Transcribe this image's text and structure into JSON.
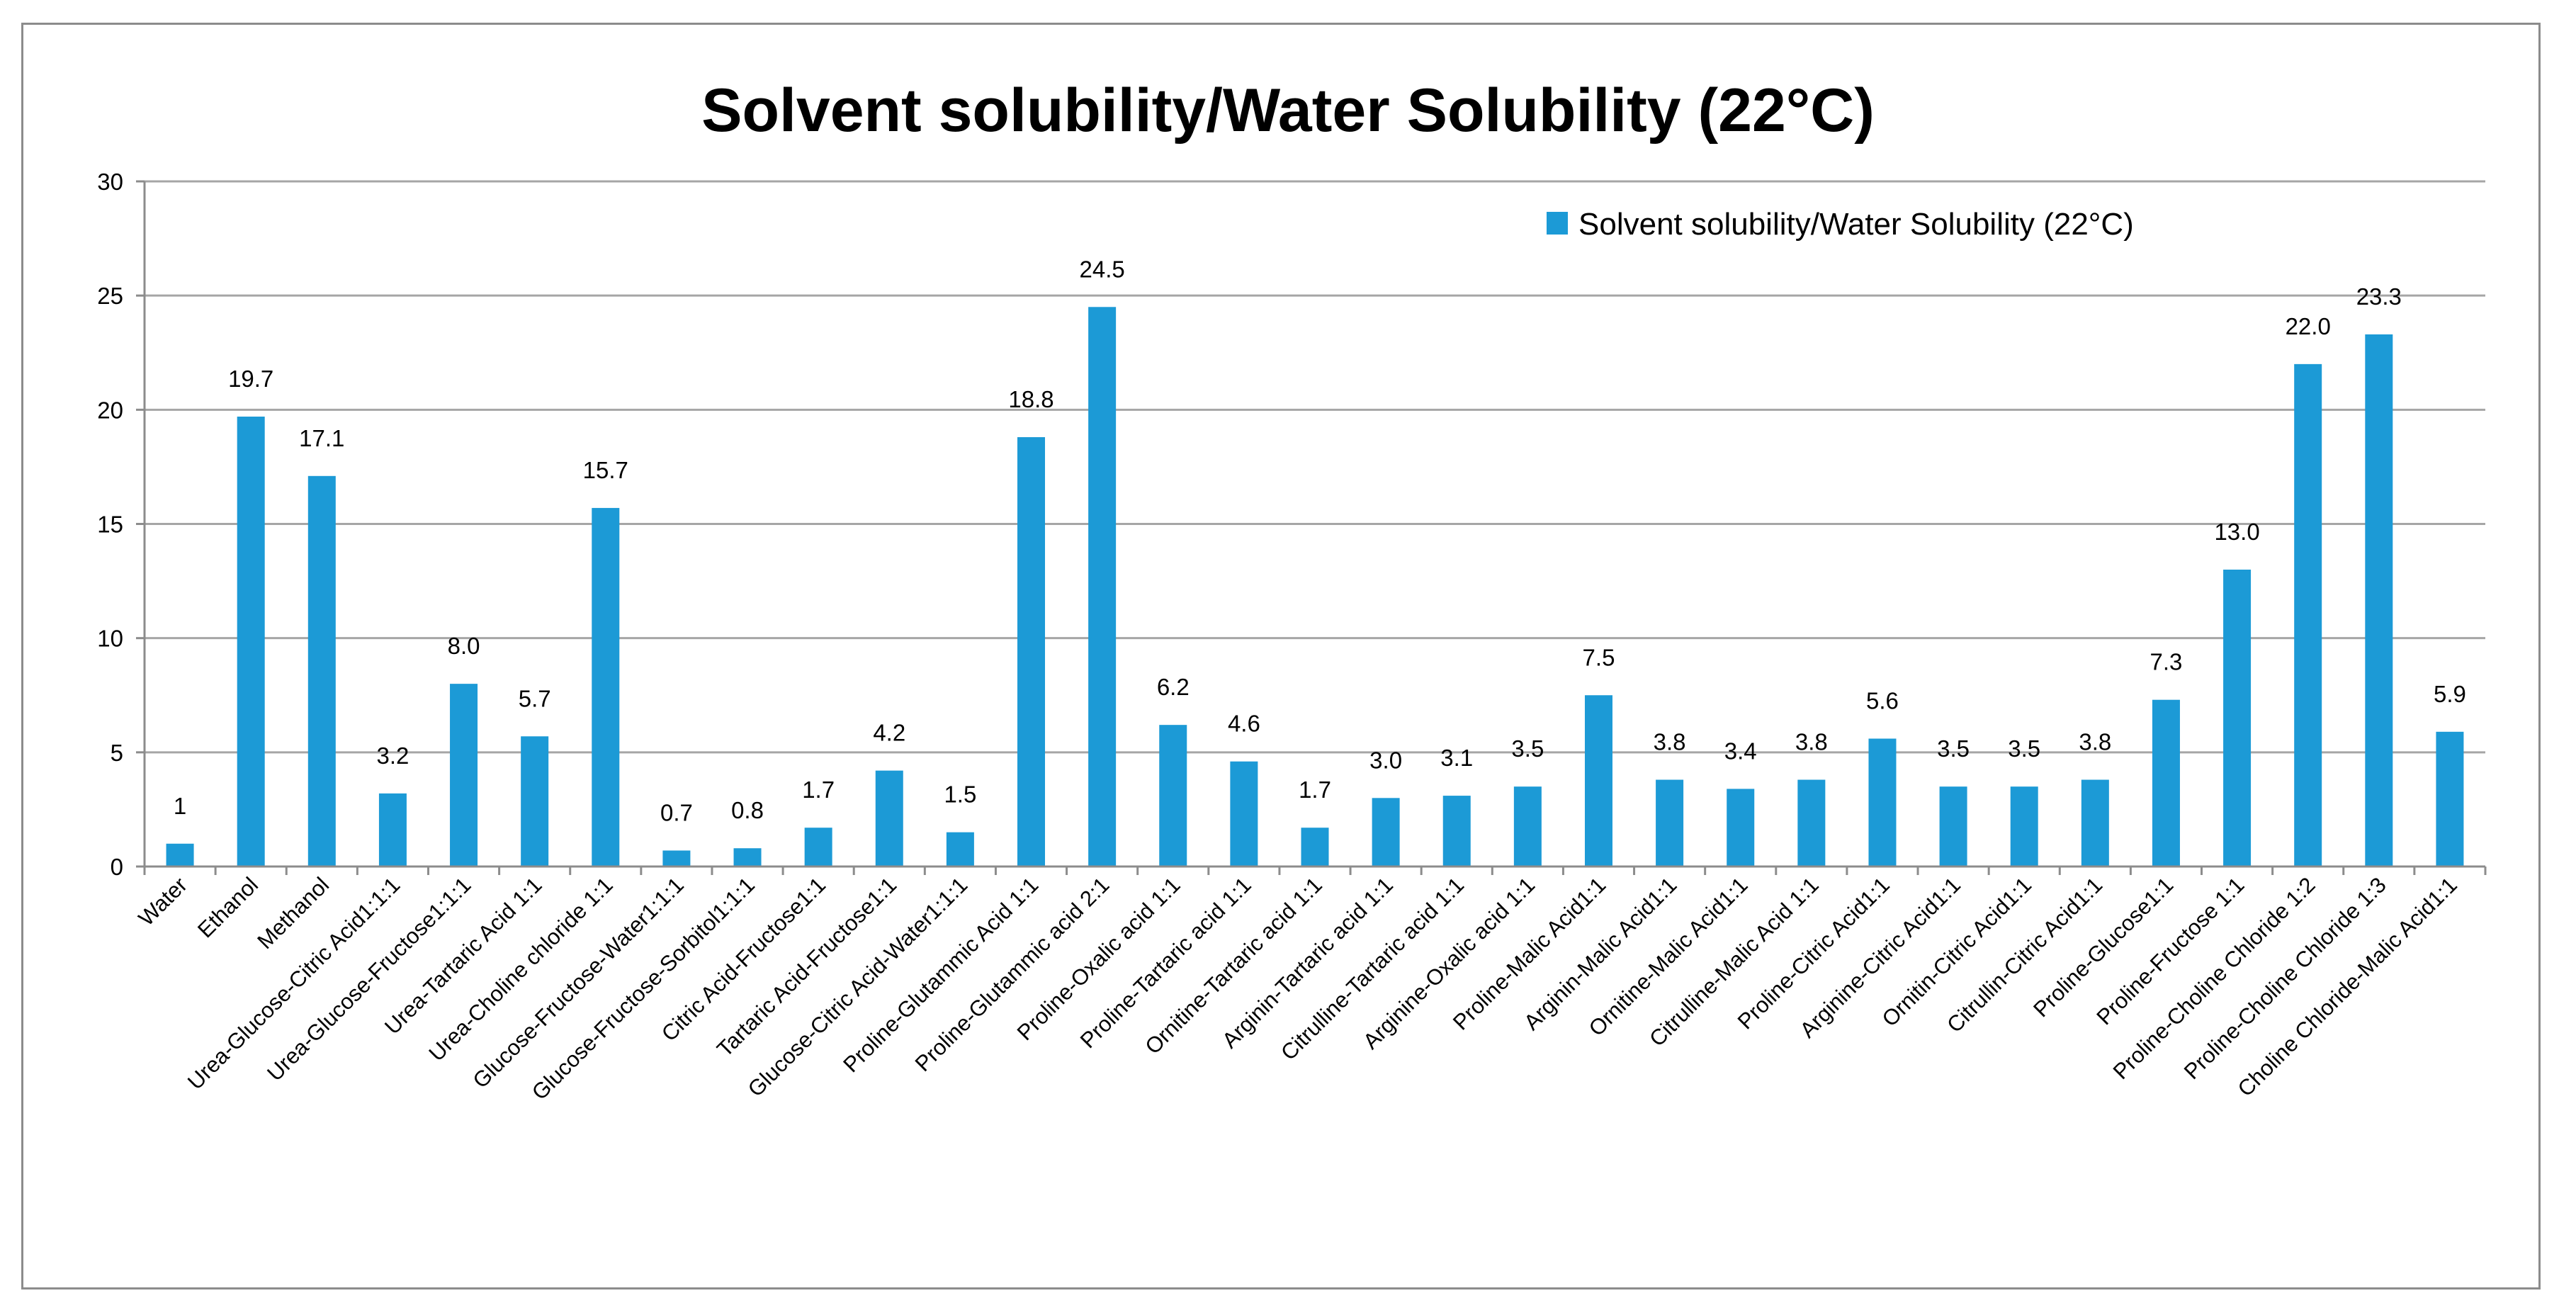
{
  "chart_data": {
    "type": "bar",
    "title": "Solvent solubility/Water Solubility (22°C)",
    "xlabel": "",
    "ylabel": "",
    "ylim": [
      0,
      30
    ],
    "yticks": [
      0,
      5,
      10,
      15,
      20,
      25,
      30
    ],
    "grid": true,
    "legend_position": "top-right",
    "series_color": "#1C9AD6",
    "series": [
      {
        "name": "Solvent solubility/Water Solubility (22°C)",
        "values": [
          1,
          19.7,
          17.1,
          3.2,
          8.0,
          5.7,
          15.7,
          0.7,
          0.8,
          1.7,
          4.2,
          1.5,
          18.8,
          24.5,
          6.2,
          4.6,
          1.7,
          3.0,
          3.1,
          3.5,
          7.5,
          3.8,
          3.4,
          3.8,
          5.6,
          3.5,
          3.5,
          3.8,
          7.3,
          13.0,
          22.0,
          23.3,
          5.9
        ]
      }
    ],
    "value_labels": [
      "1",
      "19.7",
      "17.1",
      "3.2",
      "8.0",
      "5.7",
      "15.7",
      "0.7",
      "0.8",
      "1.7",
      "4.2",
      "1.5",
      "18.8",
      "24.5",
      "6.2",
      "4.6",
      "1.7",
      "3.0",
      "3.1",
      "3.5",
      "7.5",
      "3.8",
      "3.4",
      "3.8",
      "5.6",
      "3.5",
      "3.5",
      "3.8",
      "7.3",
      "13.0",
      "22.0",
      "23.3",
      "5.9"
    ],
    "categories": [
      "Water",
      "Ethanol",
      "Methanol",
      "Urea-Glucose-Citric Acid1:1:1",
      "Urea-Glucose-Fructose1:1:1",
      "Urea-Tartaric Acid 1:1",
      "Urea-Choline chloride 1:1",
      "Glucose-Fructose-Water1:1:1",
      "Glucose-Fructose-Sorbitol1:1:1",
      "Citric Acid-Fructose1:1",
      "Tartaric Acid-Fructose1:1",
      "Glucose-Citric Acid-Water1:1:1",
      "Proline-Glutammic Acid 1:1",
      "Proline-Glutammic acid 2:1",
      "Proline-Oxalic acid 1:1",
      "Proline-Tartaric acid 1:1",
      "Ornitine-Tartaric acid 1:1",
      "Arginin-Tartaric acid 1:1",
      "Citrulline-Tartaric acid 1:1",
      "Arginine-Oxalic acid 1:1",
      "Proline-Malic Acid1:1",
      "Arginin-Malic Acid1:1",
      "Ornitine-Malic Acid1:1",
      "Citrulline-Malic Acid 1:1",
      "Proline-Citric Acid1:1",
      "Arginine-Citric Acid1:1",
      "Ornitin-Citric Acid1:1",
      "Citrullin-Citric Acid1:1",
      "Proline-Glucose1:1",
      "Proline-Fructose 1:1",
      "Proline-Choline Chloride 1:2",
      "Proline-Choline Chloride 1:3",
      "Choline Chloride-Malic Acid1:1"
    ]
  }
}
